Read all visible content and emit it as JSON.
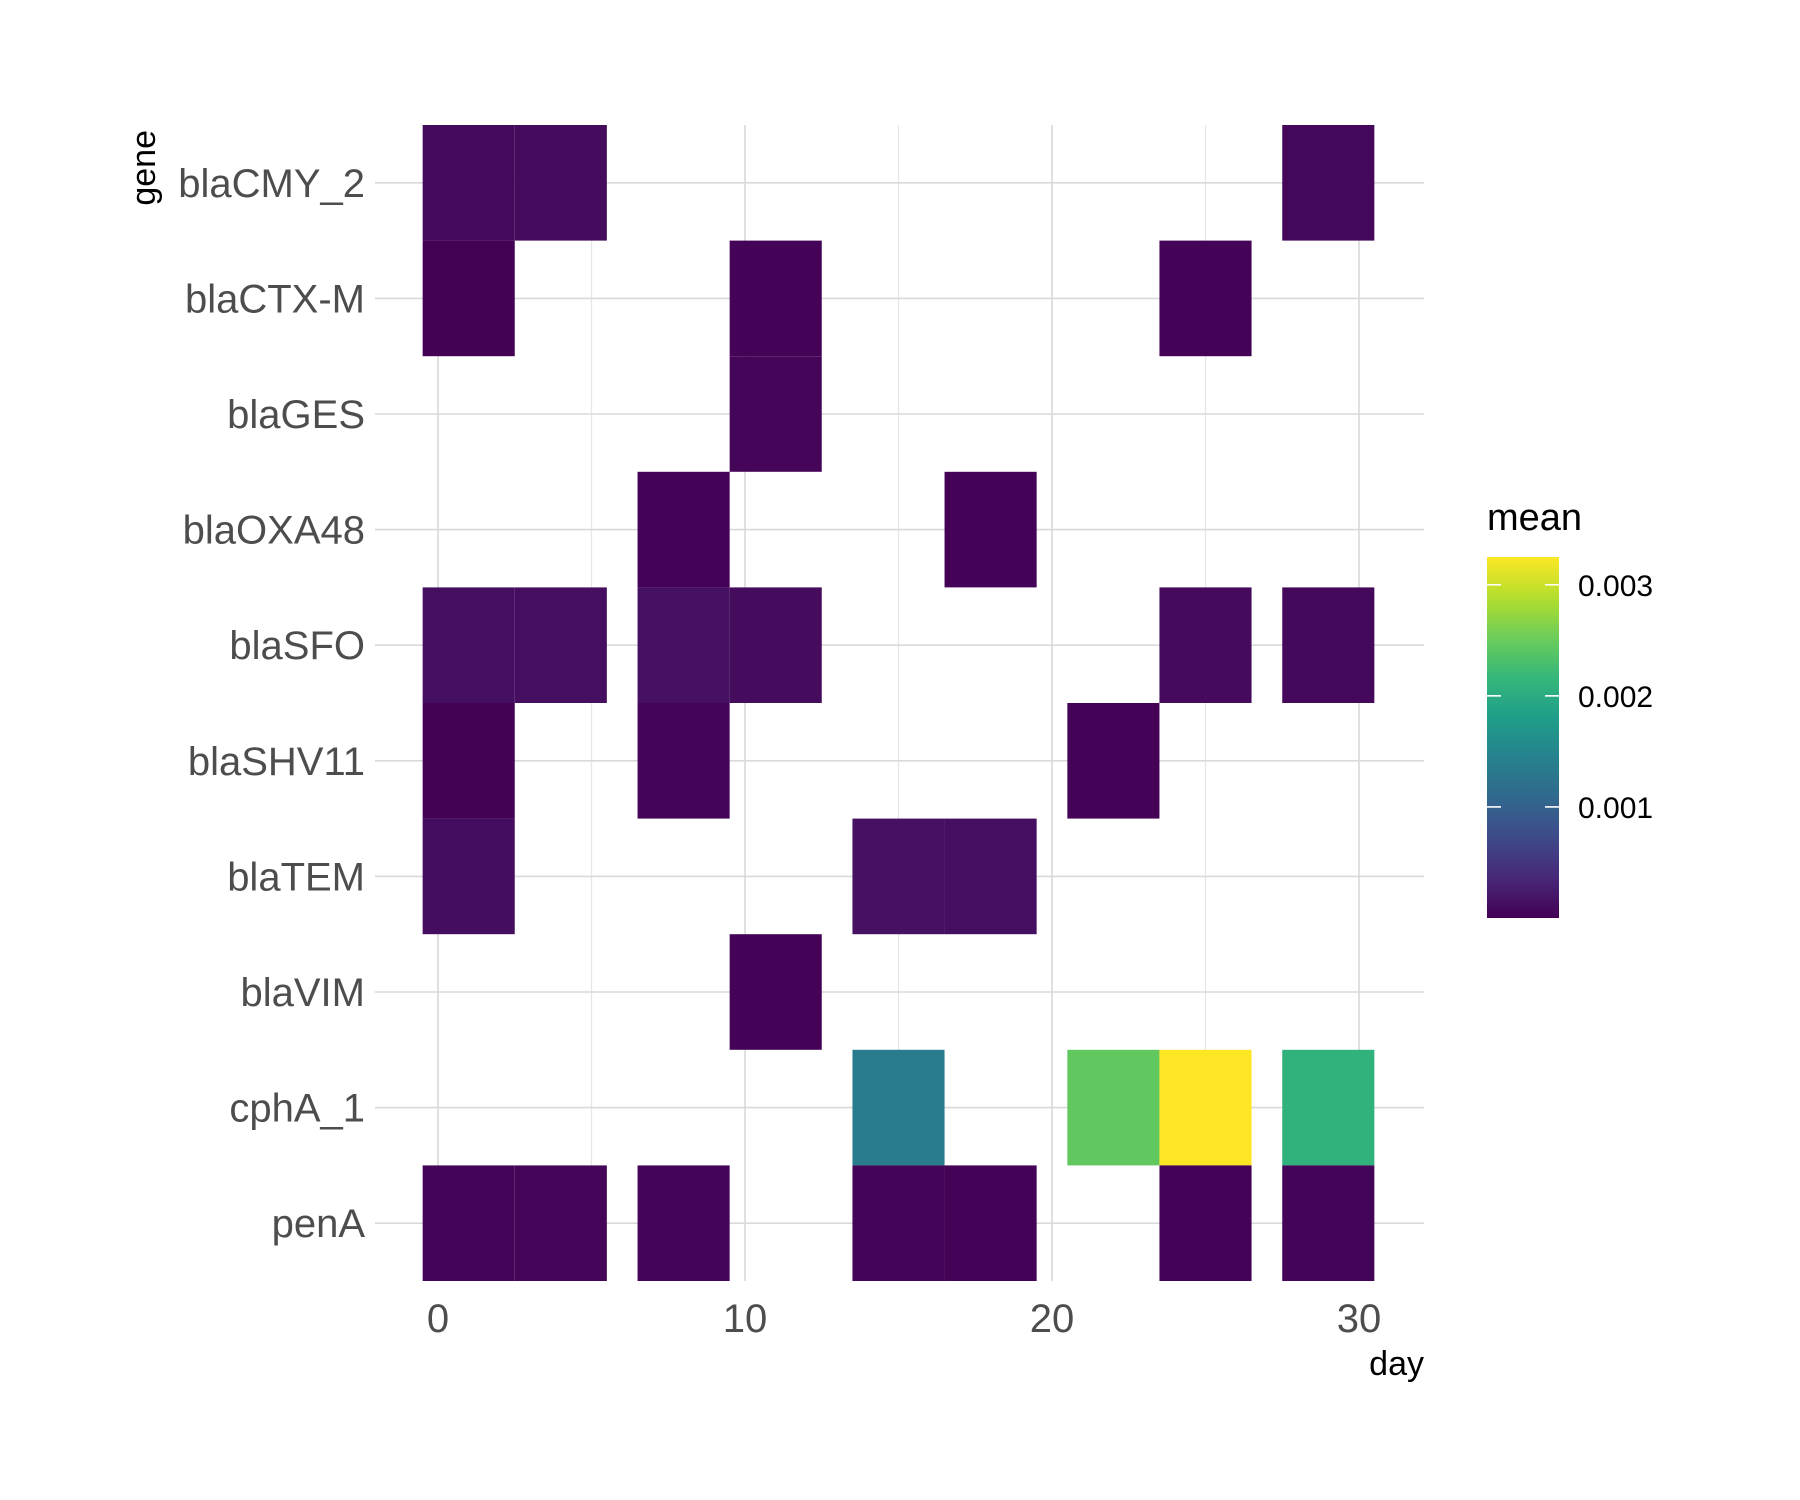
{
  "chart_data": {
    "type": "heatmap",
    "xlabel": "day",
    "ylabel": "gene",
    "xlim": [
      -0.5,
      32
    ],
    "x_ticks": [
      0,
      10,
      20,
      30
    ],
    "tile_width": 3,
    "genes": [
      "blaCMY_2",
      "blaCTX-M",
      "blaGES",
      "blaOXA48",
      "blaSFO",
      "blaSHV11",
      "blaTEM",
      "blaVIM",
      "cphA_1",
      "penA"
    ],
    "legend": {
      "title": "mean",
      "position": "right",
      "min": 0.0,
      "max": 0.00325,
      "breaks": [
        0.001,
        0.002,
        0.003
      ],
      "labels": [
        "0.001",
        "0.002",
        "0.003"
      ],
      "colors": [
        "#440154",
        "#482878",
        "#3E4A89",
        "#31688E",
        "#26828E",
        "#1F9E89",
        "#35B779",
        "#6DCD59",
        "#B4DE2C",
        "#FDE725"
      ]
    },
    "tiles": [
      {
        "gene": "blaCMY_2",
        "day": 1,
        "value": 8e-05
      },
      {
        "gene": "blaCMY_2",
        "day": 4,
        "value": 9e-05
      },
      {
        "gene": "blaCMY_2",
        "day": 29,
        "value": 6e-05
      },
      {
        "gene": "blaCTX-M",
        "day": 1,
        "value": 1e-05
      },
      {
        "gene": "blaCTX-M",
        "day": 11,
        "value": 2e-05
      },
      {
        "gene": "blaCTX-M",
        "day": 25,
        "value": 2e-05
      },
      {
        "gene": "blaGES",
        "day": 11,
        "value": 5e-05
      },
      {
        "gene": "blaOXA48",
        "day": 8,
        "value": 2e-05
      },
      {
        "gene": "blaOXA48",
        "day": 18,
        "value": 2e-05
      },
      {
        "gene": "blaSFO",
        "day": 1,
        "value": 0.00013
      },
      {
        "gene": "blaSFO",
        "day": 4,
        "value": 0.00012
      },
      {
        "gene": "blaSFO",
        "day": 8,
        "value": 0.00015
      },
      {
        "gene": "blaSFO",
        "day": 11,
        "value": 9e-05
      },
      {
        "gene": "blaSFO",
        "day": 25,
        "value": 8e-05
      },
      {
        "gene": "blaSFO",
        "day": 29,
        "value": 7e-05
      },
      {
        "gene": "blaSHV11",
        "day": 1,
        "value": 1e-05
      },
      {
        "gene": "blaSHV11",
        "day": 8,
        "value": 3e-05
      },
      {
        "gene": "blaSHV11",
        "day": 22,
        "value": 2e-05
      },
      {
        "gene": "blaTEM",
        "day": 1,
        "value": 0.00011
      },
      {
        "gene": "blaTEM",
        "day": 15,
        "value": 0.00015
      },
      {
        "gene": "blaTEM",
        "day": 18,
        "value": 0.00013
      },
      {
        "gene": "blaVIM",
        "day": 11,
        "value": 2e-05
      },
      {
        "gene": "cphA_1",
        "day": 15,
        "value": 0.00135
      },
      {
        "gene": "cphA_1",
        "day": 22,
        "value": 0.00245
      },
      {
        "gene": "cphA_1",
        "day": 25,
        "value": 0.00325
      },
      {
        "gene": "cphA_1",
        "day": 29,
        "value": 0.0021
      },
      {
        "gene": "penA",
        "day": 1,
        "value": 4e-05
      },
      {
        "gene": "penA",
        "day": 4,
        "value": 5e-05
      },
      {
        "gene": "penA",
        "day": 8,
        "value": 4e-05
      },
      {
        "gene": "penA",
        "day": 15,
        "value": 3e-05
      },
      {
        "gene": "penA",
        "day": 18,
        "value": 2e-05
      },
      {
        "gene": "penA",
        "day": 25,
        "value": 2e-05
      },
      {
        "gene": "penA",
        "day": 29,
        "value": 3e-05
      }
    ]
  }
}
